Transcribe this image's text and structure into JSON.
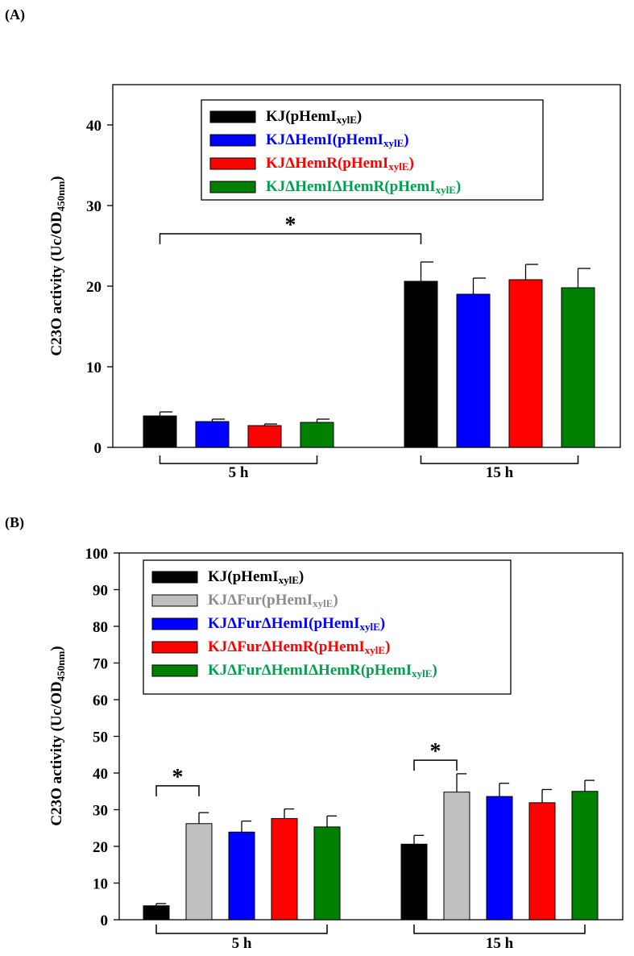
{
  "chart_data": [
    {
      "panel_label": "(A)",
      "type": "bar",
      "ylabel": "C23O activity (Uc/OD",
      "ylabel_sub": "450nm",
      "ylabel_end": ")",
      "ylim": [
        0,
        45
      ],
      "yticks": [
        0,
        10,
        20,
        30,
        40
      ],
      "categories": [
        "5 h",
        "15 h"
      ],
      "series": [
        {
          "name": "KJ(pHemI",
          "sub": "xylE",
          "close": ")",
          "color": "#000000",
          "label_color": "#000000",
          "values": [
            3.9,
            20.6
          ],
          "errors": [
            0.5,
            2.4
          ]
        },
        {
          "name": "KJΔHemI(pHemI",
          "sub": "xylE",
          "close": ")",
          "color": "#0000ff",
          "label_color": "#0000ff",
          "values": [
            3.2,
            19.0
          ],
          "errors": [
            0.3,
            2.0
          ]
        },
        {
          "name": "KJΔHemR(pHemI",
          "sub": "xylE",
          "close": ")",
          "color": "#ff0000",
          "label_color": "#ff0000",
          "values": [
            2.7,
            20.8
          ],
          "errors": [
            0.2,
            1.9
          ]
        },
        {
          "name": "KJΔHemIΔHemR(pHemI",
          "sub": "xylE",
          "close": ")",
          "color": "#008000",
          "label_color": "#00a050",
          "values": [
            3.1,
            19.8
          ],
          "errors": [
            0.4,
            2.4
          ]
        }
      ],
      "annotations": [
        {
          "text": "*",
          "from": {
            "group": 0,
            "series": 0
          },
          "to": {
            "group": 1,
            "series": 0
          },
          "level": 26.5
        }
      ]
    },
    {
      "panel_label": "(B)",
      "type": "bar",
      "ylabel": "C23O activity (Uc/OD",
      "ylabel_sub": "450nm",
      "ylabel_end": ")",
      "ylim": [
        0,
        100
      ],
      "yticks": [
        0,
        10,
        20,
        30,
        40,
        50,
        60,
        70,
        80,
        90,
        100
      ],
      "categories": [
        "5 h",
        "15 h"
      ],
      "series": [
        {
          "name": "KJ(pHemI",
          "sub": "xylE",
          "close": ")",
          "color": "#000000",
          "label_color": "#000000",
          "values": [
            3.8,
            20.6
          ],
          "errors": [
            0.6,
            2.4
          ]
        },
        {
          "name": "KJΔFur(pHemI",
          "sub": "xylE",
          "close": ")",
          "color": "#c0c0c0",
          "label_color": "#8c8c8c",
          "values": [
            26.2,
            34.8
          ],
          "errors": [
            3.0,
            5.0
          ]
        },
        {
          "name": "KJΔFurΔHemI(pHemI",
          "sub": "xylE",
          "close": ")",
          "color": "#0000ff",
          "label_color": "#0000ff",
          "values": [
            23.9,
            33.6
          ],
          "errors": [
            3.0,
            3.6
          ]
        },
        {
          "name": "KJΔFurΔHemR(pHemI",
          "sub": "xylE",
          "close": ")",
          "color": "#ff0000",
          "label_color": "#ff0000",
          "values": [
            27.6,
            31.9
          ],
          "errors": [
            2.6,
            3.6
          ]
        },
        {
          "name": "KJΔFurΔHemIΔHemR(pHemI",
          "sub": "xylE",
          "close": ")",
          "color": "#008000",
          "label_color": "#00a050",
          "values": [
            25.3,
            35.0
          ],
          "errors": [
            3.0,
            3.0
          ]
        }
      ],
      "annotations": [
        {
          "text": "*",
          "from": {
            "group": 0,
            "series": 0
          },
          "to": {
            "group": 0,
            "series": 1
          },
          "level": 36.5
        },
        {
          "text": "*",
          "from": {
            "group": 1,
            "series": 0
          },
          "to": {
            "group": 1,
            "series": 1
          },
          "level": 43.5
        }
      ]
    }
  ]
}
